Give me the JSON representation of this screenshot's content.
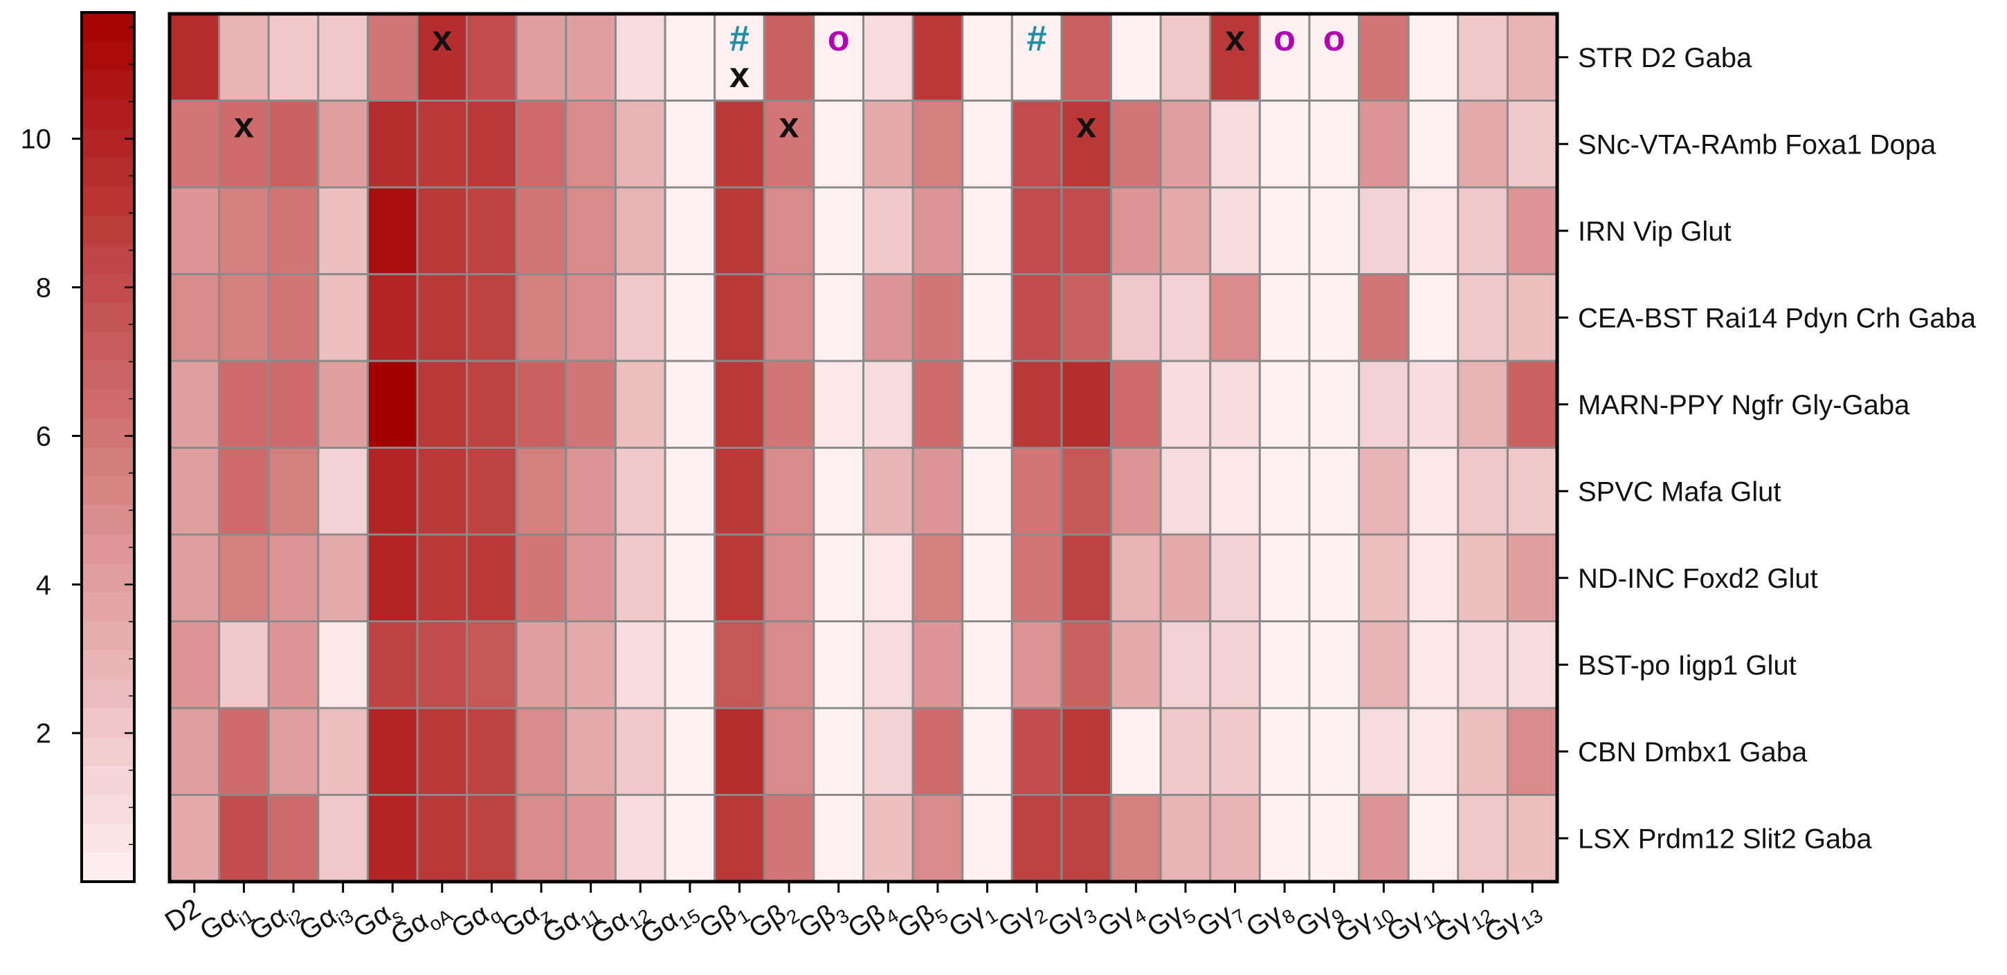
{
  "chart_data": {
    "type": "heatmap",
    "title": "",
    "xlabel": "",
    "ylabel": "",
    "columns": [
      "D2",
      "Gαi1",
      "Gαi2",
      "Gαi3",
      "Gαs",
      "GαoA",
      "Gαq",
      "Gαz",
      "Gα11",
      "Gα12",
      "Gα15",
      "Gβ1",
      "Gβ2",
      "Gβ3",
      "Gβ4",
      "Gβ5",
      "Gγ1",
      "Gγ2",
      "Gγ3",
      "Gγ4",
      "Gγ5",
      "Gγ7",
      "Gγ8",
      "Gγ9",
      "Gγ10",
      "Gγ11",
      "Gγ12",
      "Gγ13"
    ],
    "column_labels": [
      {
        "base": "D2",
        "sub": ""
      },
      {
        "base": "Gα",
        "sub": "i1"
      },
      {
        "base": "Gα",
        "sub": "i2"
      },
      {
        "base": "Gα",
        "sub": "i3"
      },
      {
        "base": "Gα",
        "sub": "s"
      },
      {
        "base": "Gα",
        "sub": "oA"
      },
      {
        "base": "Gα",
        "sub": "q"
      },
      {
        "base": "Gα",
        "sub": "z"
      },
      {
        "base": "Gα",
        "sub": "11"
      },
      {
        "base": "Gα",
        "sub": "12"
      },
      {
        "base": "Gα",
        "sub": "15"
      },
      {
        "base": "Gβ",
        "sub": "1"
      },
      {
        "base": "Gβ",
        "sub": "2"
      },
      {
        "base": "Gβ",
        "sub": "3"
      },
      {
        "base": "Gβ",
        "sub": "4"
      },
      {
        "base": "Gβ",
        "sub": "5"
      },
      {
        "base": "Gγ",
        "sub": "1"
      },
      {
        "base": "Gγ",
        "sub": "2"
      },
      {
        "base": "Gγ",
        "sub": "3"
      },
      {
        "base": "Gγ",
        "sub": "4"
      },
      {
        "base": "Gγ",
        "sub": "5"
      },
      {
        "base": "Gγ",
        "sub": "7"
      },
      {
        "base": "Gγ",
        "sub": "8"
      },
      {
        "base": "Gγ",
        "sub": "9"
      },
      {
        "base": "Gγ",
        "sub": "10"
      },
      {
        "base": "Gγ",
        "sub": "11"
      },
      {
        "base": "Gγ",
        "sub": "12"
      },
      {
        "base": "Gγ",
        "sub": "13"
      }
    ],
    "rows": [
      "STR D2 Gaba",
      "SNc-VTA-RAmb Foxa1 Dopa",
      "IRN Vip Glut",
      "CEA-BST Rai14 Pdyn Crh Gaba",
      "MARN-PPY Ngfr Gly-Gaba",
      "SPVC Mafa Glut",
      "ND-INC Foxd2 Glut",
      "BST-po Iigp1 Glut",
      "CBN Dmbx1 Gaba",
      "LSX Prdm12 Slit2 Gaba"
    ],
    "values": [
      [
        9.5,
        3,
        2,
        2,
        6,
        9.5,
        8,
        4,
        4,
        1,
        0,
        0,
        7,
        0,
        1,
        9,
        0,
        0,
        7,
        0,
        2,
        9,
        0,
        0,
        6,
        0,
        2,
        3
      ],
      [
        6,
        6.5,
        7,
        4,
        9.5,
        9,
        9,
        6.5,
        5,
        3,
        0,
        9,
        6,
        0,
        3.5,
        5.5,
        0,
        8,
        9,
        6,
        4,
        1,
        0,
        0,
        4.5,
        0,
        3.5,
        2
      ],
      [
        4.5,
        5.5,
        6,
        2.5,
        11,
        9,
        8.5,
        6,
        5,
        3,
        0,
        9,
        5,
        0,
        2,
        4.5,
        0,
        8,
        8,
        4.5,
        3.5,
        1,
        0,
        0,
        1.5,
        0.5,
        2,
        4.5
      ],
      [
        5,
        5.5,
        6,
        2.5,
        10,
        9,
        8.5,
        5.5,
        5,
        2,
        0,
        9,
        5,
        0,
        4.5,
        6,
        0,
        8,
        7,
        2,
        1.5,
        5,
        0,
        0,
        6,
        0,
        2,
        2.5
      ],
      [
        4,
        6.5,
        6.5,
        4,
        12,
        9,
        8.5,
        7,
        6,
        2.5,
        0,
        9,
        6,
        0.5,
        1,
        6.5,
        0,
        9,
        9.5,
        6.5,
        1,
        1,
        0,
        0,
        1.5,
        1,
        3,
        7
      ],
      [
        4,
        6.5,
        5.5,
        1.5,
        10,
        9,
        8.5,
        5.5,
        4.5,
        2,
        0,
        9,
        5,
        0,
        3,
        4.5,
        0,
        6,
        7.5,
        4.5,
        1,
        0.5,
        0,
        0,
        3,
        0.5,
        2,
        2
      ],
      [
        4,
        5.5,
        4.5,
        3.5,
        10,
        9,
        9,
        6,
        4.5,
        2,
        0,
        9,
        5,
        0,
        0.5,
        5.5,
        0,
        6,
        8.5,
        3,
        3.5,
        1.5,
        0,
        0,
        2.5,
        0.5,
        2.5,
        4
      ],
      [
        4.5,
        2,
        4.5,
        0.5,
        8.5,
        8,
        7.5,
        4,
        3.5,
        1,
        0,
        7.5,
        5,
        0,
        1,
        4.5,
        0,
        4.5,
        7,
        3.5,
        1.5,
        1.5,
        0,
        0,
        3,
        0.5,
        1,
        1
      ],
      [
        4,
        6.5,
        4,
        2.5,
        10,
        9,
        8.5,
        5,
        3.5,
        2,
        0,
        9.5,
        5,
        0,
        1.5,
        6.5,
        0,
        8,
        9,
        0,
        2,
        2,
        0,
        0,
        1,
        0.5,
        2.5,
        5
      ],
      [
        3.5,
        8,
        6.5,
        2,
        10,
        9,
        8.5,
        5,
        4.5,
        1,
        0,
        9,
        6,
        0,
        2.5,
        5,
        0,
        8.5,
        8.5,
        5.5,
        3,
        3,
        0,
        0,
        4.5,
        0,
        2,
        2.5
      ]
    ],
    "markers": [
      {
        "row": 0,
        "col": 5,
        "symbol": "x",
        "color": "#111111"
      },
      {
        "row": 0,
        "col": 11,
        "symbol": "#",
        "color": "#1f8fa6"
      },
      {
        "row": 0,
        "col": 11,
        "symbol": "x",
        "color": "#111111"
      },
      {
        "row": 0,
        "col": 13,
        "symbol": "o",
        "color": "#b400b4"
      },
      {
        "row": 0,
        "col": 17,
        "symbol": "#",
        "color": "#1f8fa6"
      },
      {
        "row": 0,
        "col": 21,
        "symbol": "x",
        "color": "#111111"
      },
      {
        "row": 0,
        "col": 22,
        "symbol": "o",
        "color": "#b400b4"
      },
      {
        "row": 0,
        "col": 23,
        "symbol": "o",
        "color": "#b400b4"
      },
      {
        "row": 1,
        "col": 1,
        "symbol": "x",
        "color": "#111111"
      },
      {
        "row": 1,
        "col": 12,
        "symbol": "x",
        "color": "#111111"
      },
      {
        "row": 1,
        "col": 18,
        "symbol": "x",
        "color": "#111111"
      }
    ],
    "colorbar": {
      "range": [
        0,
        11.7
      ],
      "ticks": [
        2,
        4,
        6,
        8,
        10
      ],
      "levels": 30,
      "low_color": "#fff1f2",
      "high_color": "#a50000",
      "position": "left"
    },
    "grid": true,
    "legend": "none"
  }
}
